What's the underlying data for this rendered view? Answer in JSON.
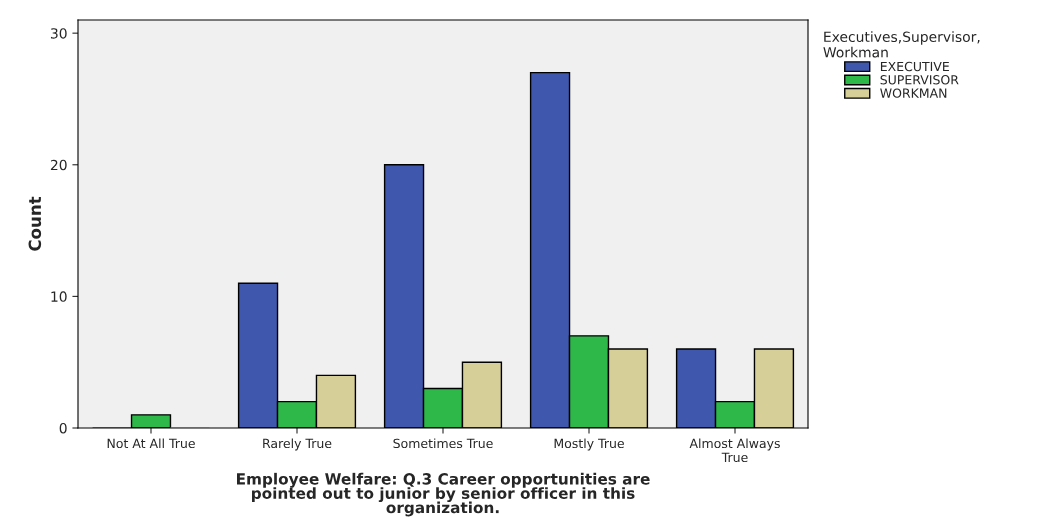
{
  "chart_data": {
    "type": "bar",
    "xlabel": "Employee Welfare: Q.3 Career opportunities are\npointed out to junior by senior officer in this\norganization.",
    "ylabel": "Count",
    "legend_title": "Executives,Supervisor,\nWorkman",
    "categories": [
      "Not At All True",
      "Rarely True",
      "Sometimes True",
      "Mostly True",
      "Almost Always\nTrue"
    ],
    "series": [
      {
        "name": "EXECUTIVE",
        "color": "#3f58ae",
        "values": [
          0,
          11,
          20,
          27,
          6
        ]
      },
      {
        "name": "SUPERVISOR",
        "color": "#2fb84a",
        "values": [
          1,
          2,
          3,
          7,
          2
        ]
      },
      {
        "name": "WORKMAN",
        "color": "#d6cf98",
        "values": [
          0,
          4,
          5,
          6,
          6
        ]
      }
    ],
    "ylim": [
      0,
      31
    ],
    "yticks": [
      0,
      10,
      20,
      30
    ],
    "grid": false,
    "legend": "top right"
  }
}
